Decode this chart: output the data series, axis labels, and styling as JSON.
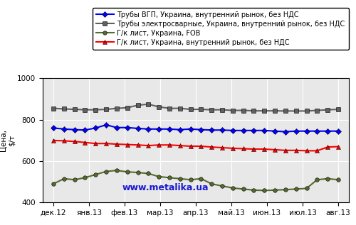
{
  "x_labels": [
    "дек.12",
    "янв.13",
    "фев.13",
    "мар.13",
    "апр.13",
    "май.13",
    "июн.13",
    "июл.13",
    "авг.13"
  ],
  "series": {
    "truby_vgp": {
      "label": "Трубы ВГП, Украина, внутренний рынок, без НДС",
      "color": "#0000FF",
      "marker": "D",
      "markersize": 4,
      "linewidth": 1.5,
      "values": [
        760,
        755,
        752,
        750,
        760,
        775,
        762,
        762,
        758,
        755,
        755,
        755,
        752,
        755,
        752,
        750,
        750,
        748,
        748,
        748,
        748,
        745,
        742,
        745,
        745,
        745,
        745,
        745
      ]
    },
    "truby_electro": {
      "label": "Трубы электросварные, Украина, внутренний рынок, без НДС",
      "color": "#606060",
      "marker": "s",
      "markersize": 5,
      "linewidth": 1.5,
      "values": [
        855,
        852,
        850,
        848,
        848,
        850,
        855,
        858,
        870,
        875,
        862,
        855,
        855,
        850,
        850,
        848,
        848,
        845,
        845,
        843,
        843,
        843,
        842,
        842,
        842,
        845,
        848,
        850
      ]
    },
    "gk_fob": {
      "label": "Г/к лист, Украина, FOB",
      "color": "#556B2F",
      "marker": "o",
      "markersize": 4,
      "linewidth": 1.5,
      "values": [
        490,
        515,
        510,
        520,
        535,
        550,
        555,
        548,
        545,
        540,
        525,
        520,
        515,
        510,
        515,
        490,
        480,
        470,
        465,
        460,
        458,
        460,
        462,
        465,
        468,
        510,
        515,
        510
      ]
    },
    "gk_domestic": {
      "label": "Г/к лист, Украина, внутренний рынок, без НДС",
      "color": "#FF0000",
      "marker": "^",
      "markersize": 5,
      "linewidth": 1.5,
      "values": [
        700,
        698,
        695,
        690,
        685,
        685,
        682,
        680,
        678,
        675,
        678,
        678,
        675,
        672,
        672,
        668,
        665,
        662,
        660,
        658,
        658,
        655,
        652,
        652,
        650,
        650,
        668,
        670
      ]
    }
  },
  "ylabel": "Цена,\n$/т",
  "ylim": [
    400,
    1000
  ],
  "yticks": [
    400,
    600,
    800,
    1000
  ],
  "background_color": "#FFFFFF",
  "plot_bg_color": "#E8E8E8",
  "watermark": "www.metalika.ua",
  "grid_color": "#FFFFFF",
  "legend_fontsize": 7.0,
  "axis_fontsize": 7.5
}
